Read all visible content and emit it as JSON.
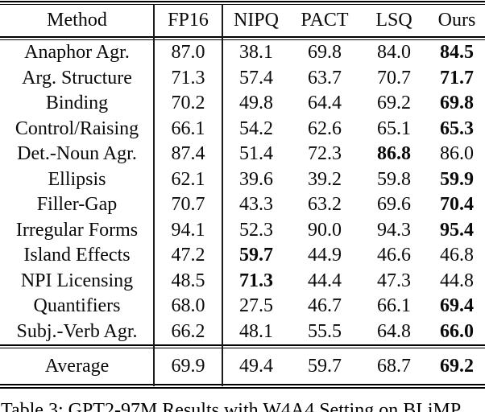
{
  "table": {
    "headers": [
      "Method",
      "FP16",
      "NIPQ",
      "PACT",
      "LSQ",
      "Ours"
    ],
    "rows": [
      {
        "method": "Anaphor Agr.",
        "values": [
          "87.0",
          "38.1",
          "69.8",
          "84.0",
          "84.5"
        ],
        "bold": [
          false,
          false,
          false,
          false,
          true
        ]
      },
      {
        "method": "Arg. Structure",
        "values": [
          "71.3",
          "57.4",
          "63.7",
          "70.7",
          "71.7"
        ],
        "bold": [
          false,
          false,
          false,
          false,
          true
        ]
      },
      {
        "method": "Binding",
        "values": [
          "70.2",
          "49.8",
          "64.4",
          "69.2",
          "69.8"
        ],
        "bold": [
          false,
          false,
          false,
          false,
          true
        ]
      },
      {
        "method": "Control/Raising",
        "values": [
          "66.1",
          "54.2",
          "62.6",
          "65.1",
          "65.3"
        ],
        "bold": [
          false,
          false,
          false,
          false,
          true
        ]
      },
      {
        "method": "Det.-Noun Agr.",
        "values": [
          "87.4",
          "51.4",
          "72.3",
          "86.8",
          "86.0"
        ],
        "bold": [
          false,
          false,
          false,
          true,
          false
        ]
      },
      {
        "method": "Ellipsis",
        "values": [
          "62.1",
          "39.6",
          "39.2",
          "59.8",
          "59.9"
        ],
        "bold": [
          false,
          false,
          false,
          false,
          true
        ]
      },
      {
        "method": "Filler-Gap",
        "values": [
          "70.7",
          "43.3",
          "63.2",
          "69.6",
          "70.4"
        ],
        "bold": [
          false,
          false,
          false,
          false,
          true
        ]
      },
      {
        "method": "Irregular Forms",
        "values": [
          "94.1",
          "52.3",
          "90.0",
          "94.3",
          "95.4"
        ],
        "bold": [
          false,
          false,
          false,
          false,
          true
        ]
      },
      {
        "method": "Island Effects",
        "values": [
          "47.2",
          "59.7",
          "44.9",
          "46.6",
          "46.8"
        ],
        "bold": [
          false,
          true,
          false,
          false,
          false
        ]
      },
      {
        "method": "NPI Licensing",
        "values": [
          "48.5",
          "71.3",
          "44.4",
          "47.3",
          "44.8"
        ],
        "bold": [
          false,
          true,
          false,
          false,
          false
        ]
      },
      {
        "method": "Quantifiers",
        "values": [
          "68.0",
          "27.5",
          "46.7",
          "66.1",
          "69.4"
        ],
        "bold": [
          false,
          false,
          false,
          false,
          true
        ]
      },
      {
        "method": "Subj.-Verb Agr.",
        "values": [
          "66.2",
          "48.1",
          "55.5",
          "64.8",
          "66.0"
        ],
        "bold": [
          false,
          false,
          false,
          false,
          true
        ]
      }
    ],
    "average": {
      "method": "Average",
      "values": [
        "69.9",
        "49.4",
        "59.7",
        "68.7",
        "69.2"
      ],
      "bold": [
        false,
        false,
        false,
        false,
        true
      ]
    }
  },
  "caption": "Table 3: GPT2-97M Results with W4A4 Setting on BLiMP."
}
